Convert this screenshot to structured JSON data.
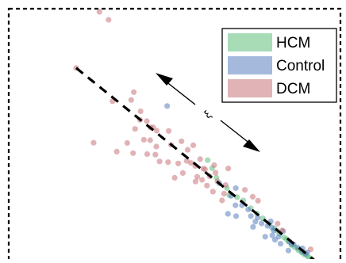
{
  "chart_data": {
    "type": "scatter",
    "title": "",
    "xlabel": "",
    "ylabel": "",
    "xlim": [
      0,
      10
    ],
    "ylim": [
      0,
      10
    ],
    "grid": false,
    "legend_position": "top-right",
    "axis_annotation": "ξ",
    "series": [
      {
        "name": "HCM",
        "color": "#5fbf7a",
        "points": [
          [
            6.06,
            4.02
          ],
          [
            6.2,
            3.7
          ],
          [
            6.33,
            3.32
          ],
          [
            6.65,
            2.91
          ],
          [
            6.96,
            2.55
          ],
          [
            7.15,
            2.42
          ],
          [
            7.38,
            2.11
          ],
          [
            7.75,
            1.71
          ],
          [
            7.95,
            1.48
          ],
          [
            8.1,
            1.31
          ],
          [
            8.26,
            1.11
          ],
          [
            8.4,
            0.95
          ],
          [
            8.53,
            0.79
          ],
          [
            8.62,
            0.65
          ],
          [
            8.72,
            0.56
          ],
          [
            8.83,
            0.45
          ],
          [
            8.93,
            0.36
          ],
          [
            9.02,
            0.27
          ],
          [
            9.11,
            0.21
          ],
          [
            9.17,
            0.14
          ],
          [
            9.24,
            0.09
          ],
          [
            8.17,
            1.22
          ],
          [
            8.47,
            0.88
          ],
          [
            8.86,
            0.5
          ],
          [
            9.0,
            0.35
          ],
          [
            6.72,
            2.63
          ],
          [
            7.57,
            1.9
          ]
        ]
      },
      {
        "name": "Control",
        "color": "#5a7fc0",
        "points": [
          [
            4.82,
            6.17
          ],
          [
            6.42,
            3.1
          ],
          [
            6.78,
            2.6
          ],
          [
            6.92,
            2.91
          ],
          [
            7.11,
            2.23
          ],
          [
            6.68,
            1.89
          ],
          [
            6.93,
            1.8
          ],
          [
            7.38,
            1.8
          ],
          [
            7.52,
            1.58
          ],
          [
            7.71,
            1.51
          ],
          [
            7.89,
            1.41
          ],
          [
            8.08,
            1.23
          ],
          [
            8.23,
            0.98
          ],
          [
            8.37,
            1.2
          ],
          [
            8.56,
            0.79
          ],
          [
            8.69,
            0.67
          ],
          [
            8.81,
            0.55
          ],
          [
            8.95,
            0.39
          ],
          [
            9.06,
            0.3
          ],
          [
            7.3,
            2.06
          ],
          [
            7.82,
            0.98
          ],
          [
            8.12,
            0.86
          ],
          [
            8.53,
            0.43
          ],
          [
            8.04,
            1.03
          ],
          [
            6.91,
            2.23
          ],
          [
            7.59,
            1.74
          ],
          [
            7.45,
            1.37
          ],
          [
            8.29,
            0.7
          ],
          [
            8.96,
            0.52
          ],
          [
            8.63,
            0.7
          ],
          [
            8.03,
            1.34
          ],
          [
            7.99,
            1.59
          ],
          [
            9.11,
            0.36
          ]
        ]
      },
      {
        "name": "DCM",
        "color": "#c9747a",
        "points": [
          [
            2.75,
            9.91
          ],
          [
            3.03,
            9.59
          ],
          [
            2.04,
            7.68
          ],
          [
            3.15,
            6.36
          ],
          [
            3.72,
            6.41
          ],
          [
            3.8,
            6.72
          ],
          [
            4.01,
            5.96
          ],
          [
            4.2,
            5.57
          ],
          [
            4.31,
            5.32
          ],
          [
            4.5,
            5.19
          ],
          [
            4.11,
            4.83
          ],
          [
            3.6,
            4.7
          ],
          [
            3.78,
            4.3
          ],
          [
            2.57,
            4.71
          ],
          [
            3.28,
            4.36
          ],
          [
            4.49,
            4.56
          ],
          [
            4.87,
            5.18
          ],
          [
            4.94,
            4.63
          ],
          [
            5.26,
            4.77
          ],
          [
            5.45,
            4.43
          ],
          [
            5.62,
            4.61
          ],
          [
            4.59,
            3.97
          ],
          [
            4.46,
            4.24
          ],
          [
            4.85,
            3.94
          ],
          [
            5.16,
            3.89
          ],
          [
            5.68,
            3.79
          ],
          [
            6.12,
            3.38
          ],
          [
            5.55,
            3.91
          ],
          [
            5.83,
            4.06
          ],
          [
            5.98,
            3.65
          ],
          [
            5.05,
            3.32
          ],
          [
            5.3,
            3.51
          ],
          [
            5.89,
            3.24
          ],
          [
            6.04,
            3.01
          ],
          [
            6.22,
            2.77
          ],
          [
            6.36,
            3.18
          ],
          [
            6.61,
            3.03
          ],
          [
            4.21,
            4.26
          ],
          [
            4.39,
            5.32
          ],
          [
            3.99,
            5.62
          ],
          [
            5.42,
            3.99
          ],
          [
            5.74,
            3.36
          ],
          [
            6.69,
            3.69
          ],
          [
            6.56,
            2.69
          ],
          [
            6.26,
            3.82
          ],
          [
            5.93,
            3.69
          ],
          [
            6.3,
            3.52
          ],
          [
            6.5,
            2.42
          ],
          [
            7.2,
            2.84
          ],
          [
            7.44,
            2.57
          ],
          [
            7.6,
            2.41
          ],
          [
            8.34,
            1.23
          ],
          [
            8.2,
            1.5
          ],
          [
            9.21,
            0.48
          ],
          [
            4.3,
            4.81
          ],
          [
            3.84,
            5.26
          ],
          [
            5.69,
            3.17
          ]
        ]
      }
    ],
    "trend_line": [
      [
        2.04,
        7.68
      ],
      [
        9.35,
        0.02
      ]
    ]
  }
}
